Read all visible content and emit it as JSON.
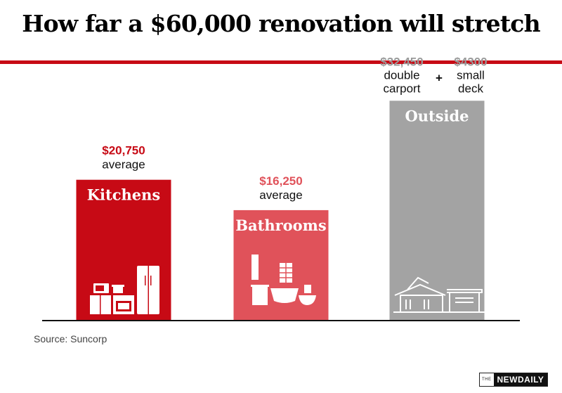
{
  "title": "How far a $60,000 renovation will stretch",
  "source": "Source: Suncorp",
  "brand": {
    "prefix": "THE",
    "name": "NEWDAILY"
  },
  "colors": {
    "rule": "#c70a15",
    "kitchens": "#c70a15",
    "bathrooms": "#e0525a",
    "outside": "#a3a3a3",
    "outside_value": "#9a9a9a",
    "axis": "#111111"
  },
  "chart_data": {
    "type": "bar",
    "title": "How far a $60,000 renovation will stretch",
    "xlabel": "",
    "ylabel": "",
    "grid": false,
    "legend": "none",
    "ylim": [
      0,
      38000
    ],
    "categories": [
      "Kitchens",
      "Bathrooms",
      "Outside"
    ],
    "values": [
      20750,
      16250,
      32450
    ],
    "labels": [
      {
        "category": "Kitchens",
        "value_text": "$20,750",
        "sub": [
          "average"
        ],
        "icon": "kitchen-appliances-icon"
      },
      {
        "category": "Bathrooms",
        "value_text": "$16,250",
        "sub": [
          "average"
        ],
        "icon": "bathroom-fixtures-icon"
      },
      {
        "category": "Outside",
        "icon": "house-carport-icon",
        "plus": "+",
        "items": [
          {
            "value_text": "$32,450",
            "sub": [
              "double",
              "carport"
            ]
          },
          {
            "value_text": "$4300",
            "sub": [
              "small",
              "deck"
            ]
          }
        ]
      }
    ]
  }
}
